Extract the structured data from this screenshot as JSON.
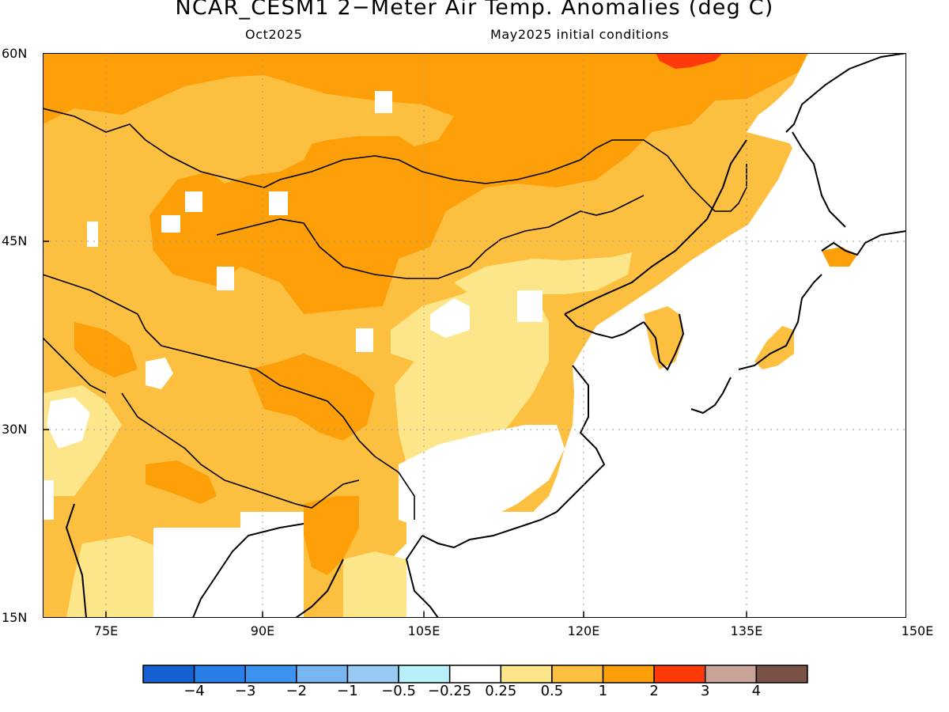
{
  "title": "NCAR_CESM1 2−Meter Air Temp. Anomalies (deg C)",
  "subtitle_left": "Oct2025",
  "subtitle_right": "May2025 initial conditions",
  "lat_labels": [
    "60N",
    "45N",
    "30N",
    "15N"
  ],
  "lon_labels": [
    "75E",
    "90E",
    "105E",
    "120E",
    "135E",
    "150E"
  ],
  "colorbar": {
    "colors": [
      "#1560d0",
      "#2a7ee8",
      "#3c94f0",
      "#78b6f2",
      "#98caf4",
      "#b8f0fa",
      "#ffffff",
      "#fde68a",
      "#fdbf3f",
      "#fd9f08",
      "#ff3a0a",
      "#c9a397",
      "#7a5246"
    ],
    "labels": [
      "−4",
      "−3",
      "−2",
      "−1",
      "−0.5",
      "−0.25",
      "0.25",
      "0.5",
      "1",
      "2",
      "3",
      "4"
    ]
  }
}
